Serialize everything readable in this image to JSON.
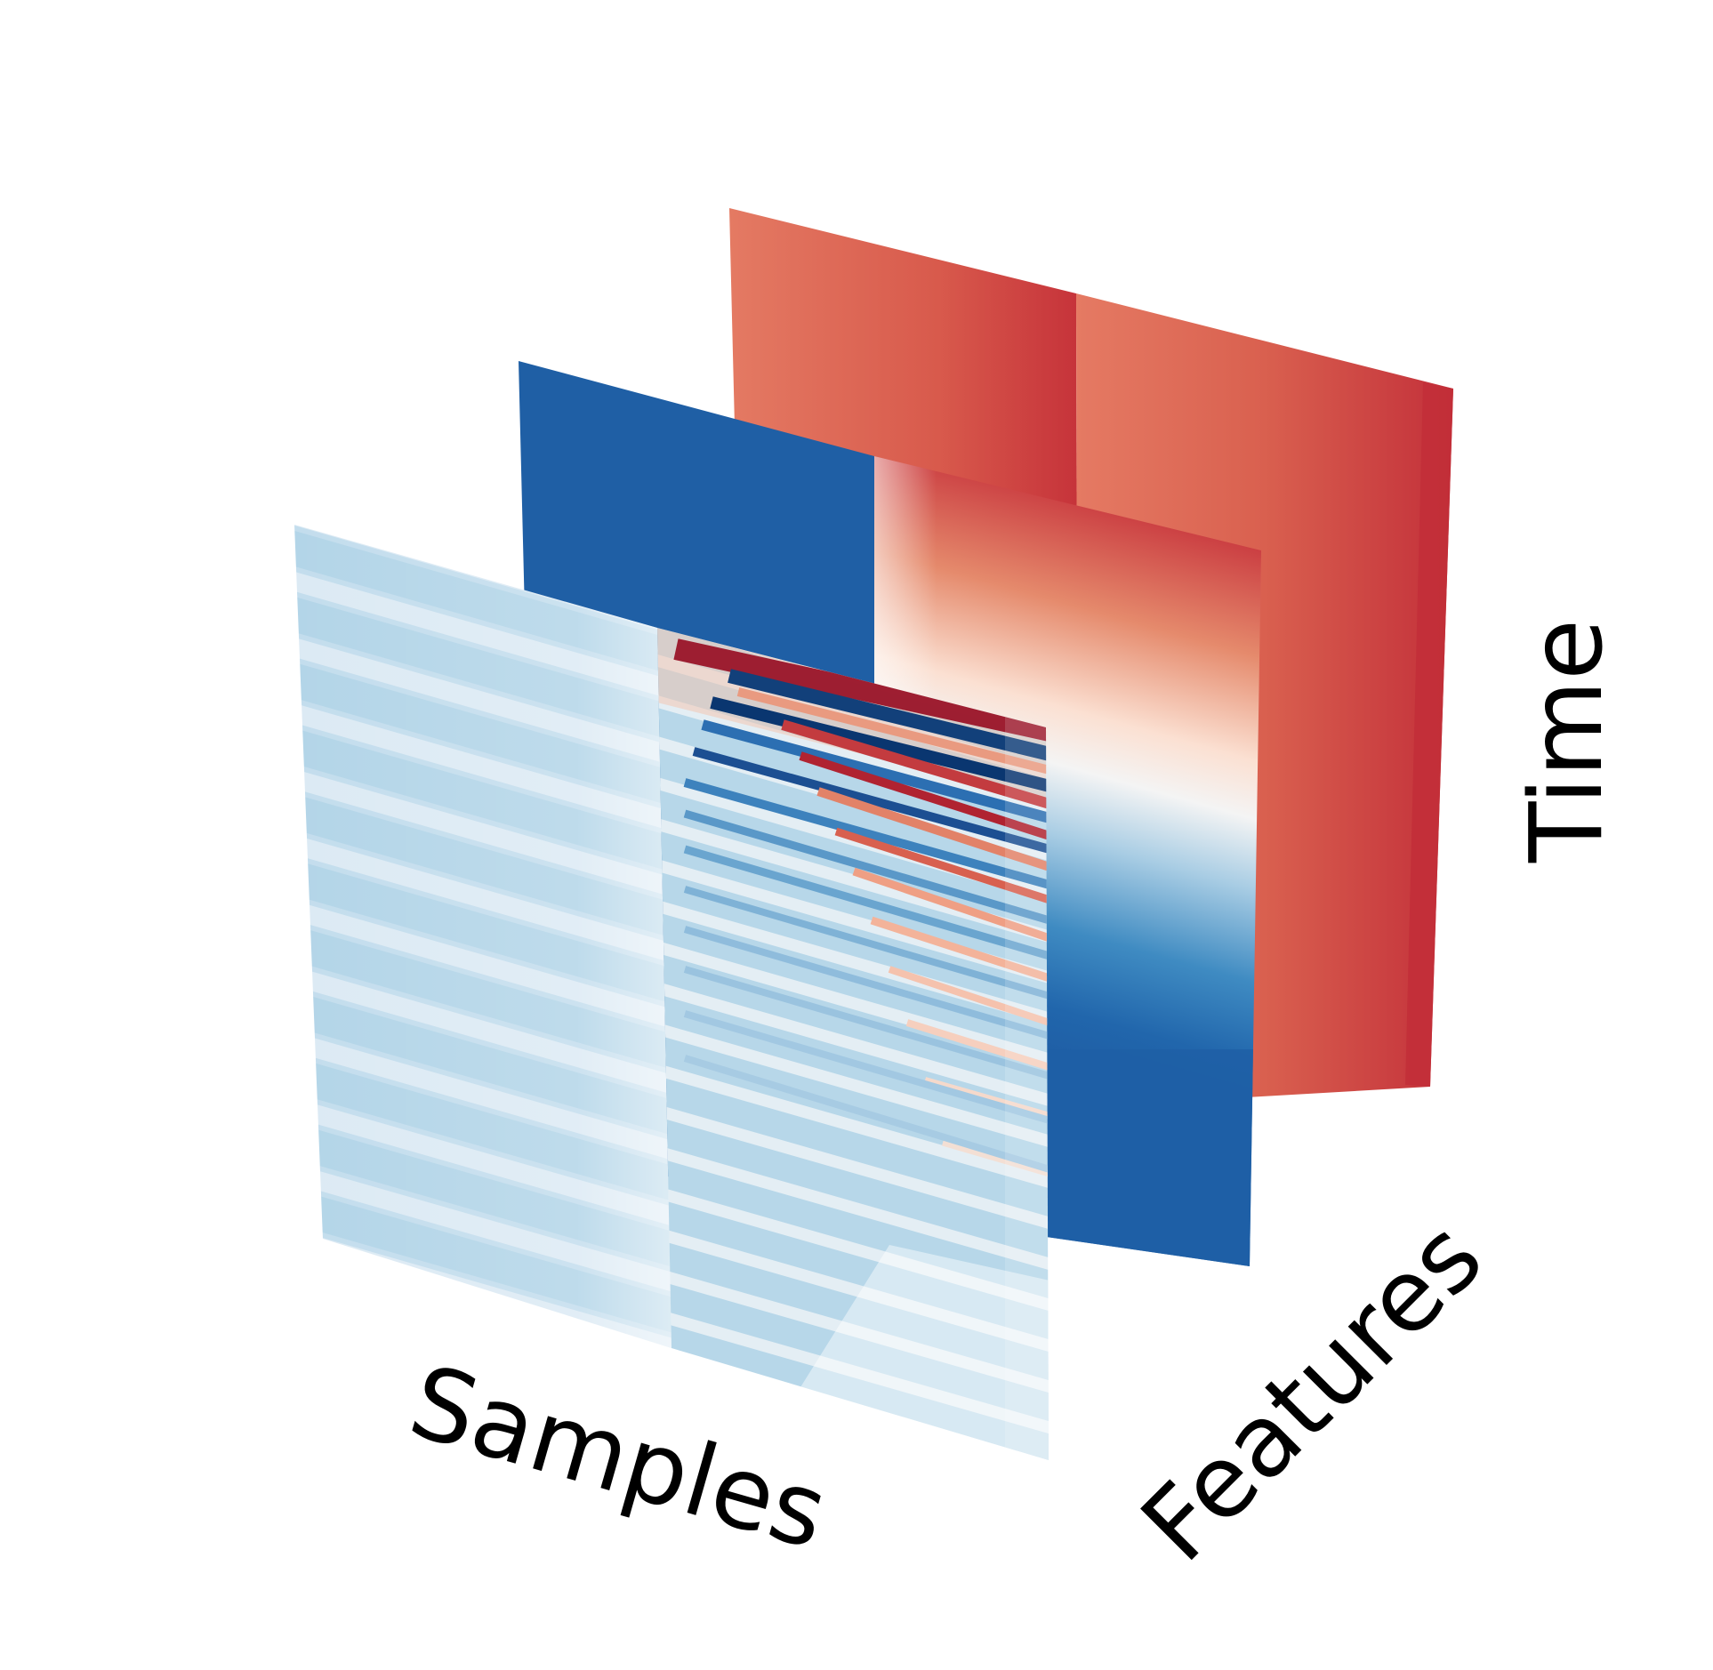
{
  "axes": {
    "samples": "Samples",
    "features": "Features",
    "time": "Time"
  },
  "colormap": {
    "name": "RdBu_r",
    "deep_blue": "#053061",
    "blue": "#2166ac",
    "mid_blue": "#4393c3",
    "light_blue": "#92c5de",
    "pale_blue": "#d1e5f0",
    "white": "#f7f7f7",
    "pale_red": "#fddbc7",
    "light_red": "#f4a582",
    "mid_red": "#d6604d",
    "red": "#b2182b",
    "deep_red": "#67001f"
  }
}
